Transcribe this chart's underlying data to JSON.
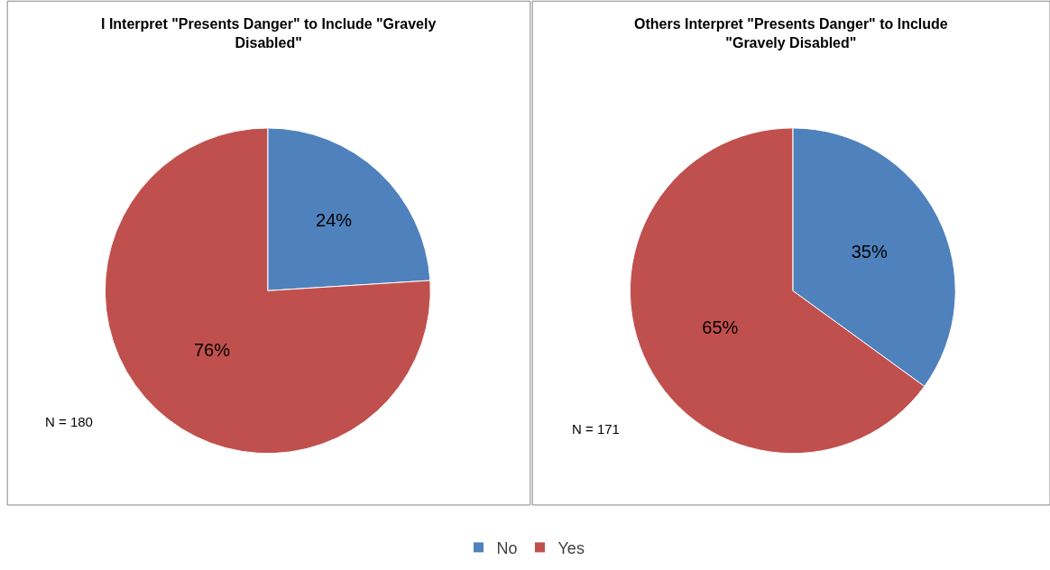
{
  "chart_data": [
    {
      "type": "pie",
      "title": "I Interpret \"Presents Danger\" to Include \"Gravely Disabled\"",
      "categories": [
        "No",
        "Yes"
      ],
      "values": [
        24,
        76
      ],
      "value_labels": [
        "24%",
        "76%"
      ],
      "colors": [
        "#4f81bd",
        "#c0504d"
      ],
      "legend": "bottom",
      "annotations": [
        "N = 180"
      ]
    },
    {
      "type": "pie",
      "title": "Others Interpret \"Presents Danger\" to Include \"Gravely Disabled\"",
      "categories": [
        null,
        null
      ],
      "values": [
        35,
        65
      ],
      "value_labels": [
        "35%",
        "65%"
      ],
      "colors": [
        "#4f81bd",
        "#c0504d"
      ],
      "annotations": [
        "N = 171"
      ]
    }
  ]
}
